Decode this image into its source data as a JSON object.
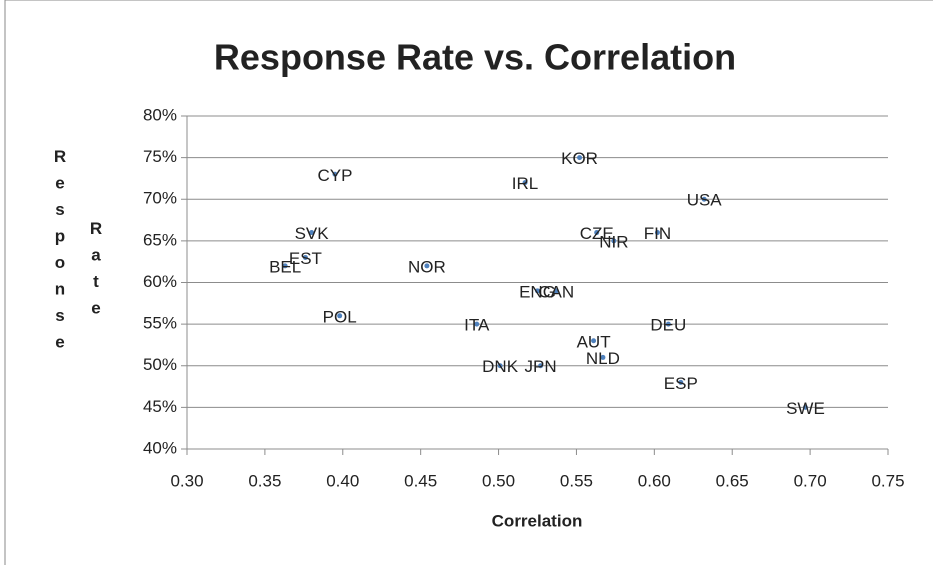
{
  "chart_data": {
    "type": "scatter",
    "title": "Response Rate vs. Correlation",
    "x_label": "Correlation",
    "y_label": "Response Rate",
    "labels": [
      "CYP",
      "KOR",
      "IRL",
      "USA",
      "SVK",
      "CZE",
      "FIN",
      "NIR",
      "EST",
      "BEL",
      "NOR",
      "ENG",
      "CAN",
      "POL",
      "ITA",
      "DEU",
      "AUT",
      "NLD",
      "DNK",
      "JPN",
      "ESP",
      "SWE"
    ],
    "x": [
      0.395,
      0.552,
      0.517,
      0.632,
      0.38,
      0.563,
      0.602,
      0.574,
      0.376,
      0.363,
      0.454,
      0.525,
      0.537,
      0.398,
      0.486,
      0.609,
      0.561,
      0.567,
      0.501,
      0.527,
      0.617,
      0.697
    ],
    "values": [
      73,
      75,
      72,
      70,
      66,
      66,
      66,
      65,
      63,
      62,
      62,
      59,
      59,
      56,
      55,
      55,
      53,
      51,
      50,
      50,
      48,
      45
    ],
    "color": "#4f81bd",
    "xlim": [
      0.3,
      0.75
    ],
    "xticks": [
      {
        "value": 0.3,
        "label": "0.30"
      },
      {
        "value": 0.35,
        "label": "0.35"
      },
      {
        "value": 0.4,
        "label": "0.40"
      },
      {
        "value": 0.45,
        "label": "0.45"
      },
      {
        "value": 0.5,
        "label": "0.50"
      },
      {
        "value": 0.55,
        "label": "0.55"
      },
      {
        "value": 0.6,
        "label": "0.60"
      },
      {
        "value": 0.65,
        "label": "0.65"
      },
      {
        "value": 0.7,
        "label": "0.70"
      },
      {
        "value": 0.75,
        "label": "0.75"
      }
    ],
    "ylim": [
      40,
      80
    ],
    "yticks": [
      {
        "value": 40,
        "label": "40%"
      },
      {
        "value": 45,
        "label": "45%"
      },
      {
        "value": 50,
        "label": "50%"
      },
      {
        "value": 55,
        "label": "55%"
      },
      {
        "value": 60,
        "label": "60%"
      },
      {
        "value": 65,
        "label": "65%"
      },
      {
        "value": 70,
        "label": "70%"
      },
      {
        "value": 75,
        "label": "75%"
      },
      {
        "value": 80,
        "label": "80%"
      }
    ],
    "grid": true
  }
}
